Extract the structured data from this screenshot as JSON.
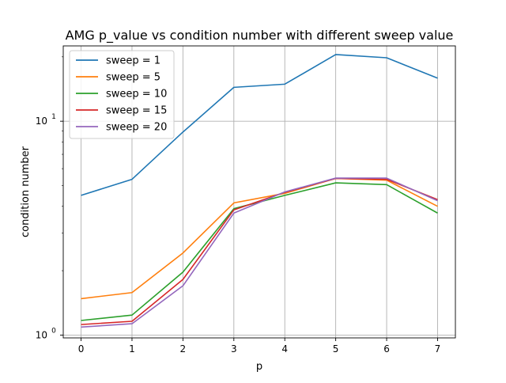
{
  "chart_data": {
    "type": "line",
    "title": "AMG p_value vs condition number with different sweep value",
    "xlabel": "p",
    "ylabel": "condition number",
    "x": [
      0,
      1,
      2,
      3,
      4,
      5,
      6,
      7
    ],
    "xticks": [
      "0",
      "1",
      "2",
      "3",
      "4",
      "5",
      "6",
      "7"
    ],
    "xlim": [
      -0.35,
      7.35
    ],
    "yscale": "log",
    "ylim": [
      0.97,
      22.5
    ],
    "yticks": [
      {
        "value": 1,
        "label": "10",
        "exp": "0"
      },
      {
        "value": 10,
        "label": "10",
        "exp": "1"
      }
    ],
    "grid": true,
    "legend_position": "top-left",
    "series": [
      {
        "name": "sweep = 1",
        "color": "#1f77b4",
        "values": [
          4.5,
          5.35,
          8.9,
          14.4,
          14.9,
          20.5,
          19.8,
          15.9
        ]
      },
      {
        "name": "sweep = 5",
        "color": "#ff7f0e",
        "values": [
          1.48,
          1.58,
          2.42,
          4.15,
          4.6,
          5.4,
          5.3,
          4.0
        ]
      },
      {
        "name": "sweep = 10",
        "color": "#2ca02c",
        "values": [
          1.17,
          1.24,
          1.97,
          3.9,
          4.5,
          5.15,
          5.05,
          3.72
        ]
      },
      {
        "name": "sweep = 15",
        "color": "#d62728",
        "values": [
          1.12,
          1.16,
          1.82,
          3.85,
          4.65,
          5.4,
          5.35,
          4.3
        ]
      },
      {
        "name": "sweep = 20",
        "color": "#9467bd",
        "values": [
          1.09,
          1.13,
          1.7,
          3.72,
          4.67,
          5.42,
          5.42,
          4.25
        ]
      }
    ]
  }
}
